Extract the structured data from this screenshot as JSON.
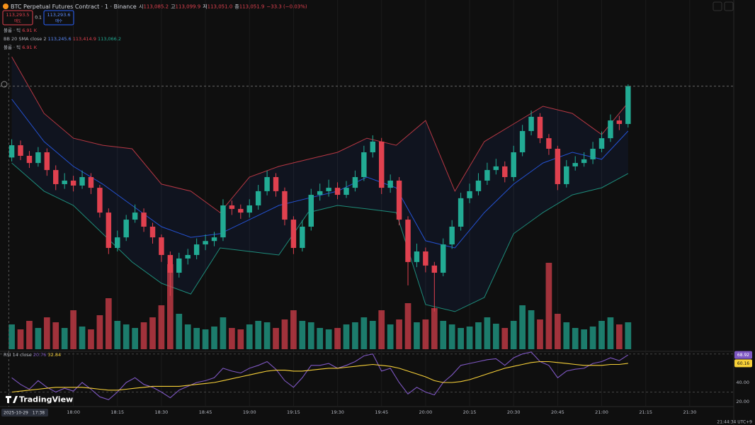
{
  "chart_data": [
    {
      "type": "candlestick",
      "title": "BTC Perpetual Futures Contract · 1 · Binance",
      "ohlc": [
        {
          "key": "시",
          "text": "113,085.2"
        },
        {
          "key": "고",
          "text": "113,099.9"
        },
        {
          "key": "저",
          "text": "113,051.0"
        },
        {
          "key": "종",
          "text": "113,051.9"
        }
      ],
      "change": "−33.3 (−0.03%)",
      "sell_price": "113,293.5",
      "sell_label": "매도",
      "spread": "0.1",
      "buy_price": "113,293.6",
      "buy_label": "매수",
      "volume_legend": "볼륨 · 틱",
      "volume_value": "6.91 K",
      "bb_legend": "BB 20 SMA close 2",
      "bb_values": [
        "113,245.6",
        "113,414.9",
        "113,066.2"
      ],
      "brand": "TradingView",
      "cursor": {
        "date": "2025-10-29",
        "time": "17:38"
      },
      "clock": "21:44:34 UTC+9",
      "up_color": "#22ab94",
      "down_color": "#e0414f",
      "xlim": [
        "17:35",
        "21:45"
      ],
      "xticks": [
        "18:00",
        "18:15",
        "18:30",
        "18:45",
        "19:00",
        "19:15",
        "19:30",
        "19:45",
        "20:00",
        "20:15",
        "20:30",
        "20:45",
        "21:00",
        "21:15",
        "21:30"
      ],
      "ylim": [
        112280,
        113420
      ],
      "vlim": [
        0,
        150
      ],
      "x": [
        "17:39",
        "17:42",
        "17:45",
        "17:48",
        "17:51",
        "17:54",
        "17:57",
        "18:00",
        "18:03",
        "18:06",
        "18:09",
        "18:12",
        "18:15",
        "18:18",
        "18:21",
        "18:24",
        "18:27",
        "18:30",
        "18:33",
        "18:36",
        "18:39",
        "18:42",
        "18:45",
        "18:48",
        "18:51",
        "18:54",
        "18:57",
        "19:00",
        "19:03",
        "19:06",
        "19:09",
        "19:12",
        "19:15",
        "19:18",
        "19:21",
        "19:24",
        "19:27",
        "19:30",
        "19:33",
        "19:36",
        "19:39",
        "19:42",
        "19:45",
        "19:48",
        "19:51",
        "19:54",
        "19:57",
        "20:00",
        "20:03",
        "20:06",
        "20:09",
        "20:12",
        "20:15",
        "20:18",
        "20:21",
        "20:24",
        "20:27",
        "20:30",
        "20:33",
        "20:36",
        "20:39",
        "20:42",
        "20:45",
        "20:48",
        "20:51",
        "20:54",
        "20:57",
        "21:00",
        "21:03",
        "21:06",
        "21:09"
      ],
      "open": [
        113020,
        113067,
        113026.5,
        112999,
        113040,
        112972,
        112918,
        112931.5,
        112912.5,
        112945,
        112904,
        112809,
        112673.5,
        112714,
        112782,
        112809,
        112755,
        112714,
        112646.5,
        112578.5,
        112633,
        112646.5,
        112687,
        112700,
        112714,
        112836.5,
        112823,
        112809,
        112836.5,
        112891,
        112945,
        112891,
        112782,
        112673.5,
        112755,
        112877,
        112891,
        112904,
        112877,
        112904,
        112945,
        113040,
        113081,
        112904,
        112931.5,
        112782,
        112619.5,
        112660,
        112606,
        112578.5,
        112687,
        112755,
        112864,
        112891,
        112931.5,
        112972,
        112986,
        112945,
        113040,
        113121.5,
        113176,
        113094,
        113053.5,
        112918,
        112986,
        112999,
        113013,
        113053.5,
        113094,
        113162,
        113148.5
      ],
      "high": [
        113090,
        113085,
        113045,
        113060,
        113055,
        112990,
        112960,
        112950,
        112970,
        112960,
        112915,
        112825,
        112740,
        112800,
        112840,
        112825,
        112770,
        112725,
        112660,
        112655,
        112670,
        112710,
        112725,
        112735,
        112860,
        112855,
        112840,
        112860,
        112915,
        112970,
        112960,
        112905,
        112795,
        112780,
        112900,
        112920,
        112935,
        112925,
        112930,
        112970,
        113065,
        113105,
        113095,
        112955,
        112945,
        112795,
        112690,
        112675,
        112620,
        112710,
        112780,
        112885,
        112920,
        112960,
        113000,
        113015,
        113005,
        113065,
        113145,
        113200,
        113190,
        113110,
        113065,
        113010,
        113025,
        113040,
        113080,
        113120,
        113185,
        113180,
        113300
      ],
      "low": [
        113005,
        113010,
        112980,
        112985,
        112950,
        112895,
        112900,
        112890,
        112900,
        112880,
        112790,
        112650,
        112660,
        112700,
        112770,
        112735,
        112690,
        112620,
        112490,
        112560,
        112610,
        112630,
        112665,
        112680,
        112700,
        112800,
        112785,
        112790,
        112820,
        112875,
        112870,
        112760,
        112650,
        112660,
        112740,
        112855,
        112870,
        112860,
        112865,
        112890,
        112930,
        113020,
        112880,
        112885,
        112760,
        112530,
        112600,
        112580,
        112430,
        112565,
        112670,
        112740,
        112845,
        112875,
        112915,
        112955,
        112925,
        112930,
        113025,
        113105,
        113075,
        113030,
        112895,
        112905,
        112970,
        112985,
        112995,
        113040,
        113080,
        113125,
        113135
      ],
      "close": [
        113067,
        113026.5,
        112999,
        113040,
        112972,
        112918,
        112931.5,
        112912.5,
        112945,
        112904,
        112809,
        112673.5,
        112714,
        112782,
        112809,
        112755,
        112714,
        112646.5,
        112578.5,
        112633,
        112646.5,
        112687,
        112700,
        112714,
        112836.5,
        112823,
        112809,
        112836.5,
        112891,
        112945,
        112891,
        112782,
        112673.5,
        112755,
        112877,
        112891,
        112904,
        112877,
        112904,
        112945,
        113040,
        113081,
        112904,
        112931.5,
        112782,
        112619.5,
        112660,
        112606,
        112578.5,
        112687,
        112755,
        112864,
        112891,
        112931.5,
        112972,
        112986,
        112945,
        113040,
        113121.5,
        113176,
        113094,
        113053.5,
        112918,
        112986,
        112999,
        113013,
        113053.5,
        113094,
        113162,
        113148.5,
        113293.5
      ],
      "volume": [
        35,
        28,
        40,
        30,
        45,
        38,
        30,
        55,
        32,
        28,
        48,
        72,
        40,
        35,
        30,
        38,
        45,
        62,
        120,
        50,
        35,
        30,
        28,
        32,
        45,
        30,
        28,
        35,
        40,
        38,
        30,
        42,
        55,
        40,
        38,
        30,
        28,
        30,
        35,
        38,
        45,
        40,
        55,
        35,
        42,
        65,
        38,
        42,
        58,
        40,
        35,
        30,
        32,
        38,
        45,
        36,
        30,
        40,
        62,
        55,
        42,
        122,
        50,
        38,
        30,
        28,
        32,
        40,
        45,
        35,
        38
      ],
      "bollinger": {
        "x": [
          "17:39",
          "17:50",
          "18:00",
          "18:10",
          "18:20",
          "18:30",
          "18:40",
          "18:50",
          "19:00",
          "19:10",
          "19:20",
          "19:30",
          "19:40",
          "19:50",
          "20:00",
          "20:10",
          "20:20",
          "20:30",
          "20:40",
          "20:50",
          "21:00",
          "21:09"
        ],
        "upper": [
          113406,
          113189,
          113094,
          113067,
          113053.5,
          112918,
          112891,
          112809,
          112945,
          112986,
          113013,
          113040,
          113094,
          113067,
          113162,
          112891,
          113081,
          113148.5,
          113216.5,
          113189,
          113108,
          113230
        ],
        "middle": [
          113243.5,
          113081,
          112986,
          112918,
          112836.5,
          112755,
          112714,
          112728,
          112782,
          112836.5,
          112864,
          112891,
          112945,
          112904,
          112701,
          112673.5,
          112809,
          112918,
          112999,
          113040,
          113013,
          113121.5
        ],
        "lower": [
          112999,
          112891,
          112836.5,
          112728,
          112619.5,
          112538,
          112497,
          112673.5,
          112660,
          112646.5,
          112809,
          112836.5,
          112823,
          112809,
          112456.5,
          112429.5,
          112483.5,
          112728,
          112809,
          112877,
          112904,
          112958.5
        ],
        "upper_color": "#e0414f",
        "middle_color": "#2962ff",
        "lower_color": "#22ab94"
      }
    },
    {
      "type": "line",
      "legend": "RSI 14 close",
      "legend_values": [
        "20.76",
        "32.84"
      ],
      "ylim": [
        15.5,
        72
      ],
      "yticks": [
        {
          "value": 20,
          "label": "20.00"
        },
        {
          "value": 40,
          "label": "40.00"
        }
      ],
      "levels": [
        70,
        30
      ],
      "series": [
        {
          "color": "#7e57c2",
          "values": [
            45,
            38,
            33,
            42,
            35,
            30,
            34,
            31,
            40,
            33,
            25,
            22,
            30,
            40,
            45,
            38,
            35,
            30,
            24,
            32,
            36,
            40,
            42,
            45,
            55,
            52,
            50,
            55,
            58,
            62,
            54,
            42,
            35,
            45,
            58,
            58,
            60,
            55,
            58,
            62,
            68,
            70,
            52,
            55,
            40,
            28,
            35,
            30,
            27,
            40,
            48,
            58,
            60,
            62,
            64,
            65,
            58,
            66,
            70,
            72,
            62,
            58,
            45,
            52,
            54,
            55,
            60,
            62,
            66,
            63,
            68.92
          ]
        },
        {
          "color": "#f7d038",
          "values": [
            30,
            31,
            32,
            33,
            34,
            35,
            35,
            35,
            35,
            34,
            33,
            32,
            32,
            33,
            34,
            35,
            36,
            36,
            36,
            36,
            37,
            38,
            39,
            40,
            42,
            44,
            46,
            48,
            50,
            52,
            53,
            53,
            52,
            52,
            53,
            54,
            55,
            55,
            56,
            57,
            58,
            59,
            58,
            57,
            55,
            52,
            49,
            46,
            42,
            40,
            40,
            41,
            43,
            46,
            49,
            52,
            55,
            57,
            59,
            61,
            62,
            62,
            61,
            60,
            59,
            58,
            58,
            58,
            59,
            59,
            60.16
          ]
        }
      ]
    }
  ]
}
